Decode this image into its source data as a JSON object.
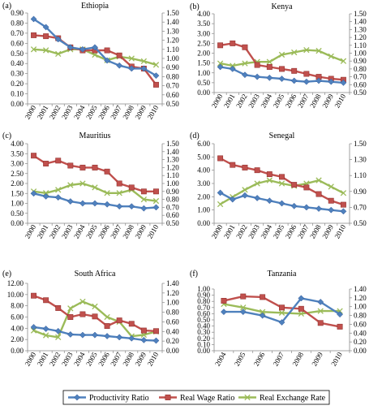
{
  "legend": [
    {
      "name": "Productivity Ratio",
      "color": "#4f81bd",
      "marker": "diamond"
    },
    {
      "name": "Real Wage Ratio",
      "color": "#c0504d",
      "marker": "square"
    },
    {
      "name": "Real Exchange Rate",
      "color": "#9bbb59",
      "marker": "x"
    }
  ],
  "chart_data": [
    {
      "type": "line",
      "panel": "(a)",
      "title": "Ethiopia",
      "x": [
        "2000",
        "2001",
        "2002",
        "2003",
        "2004",
        "2005",
        "2006",
        "2007",
        "2008",
        "2009",
        "2010"
      ],
      "y_left": {
        "ticks": [
          "0.00",
          "0.10",
          "0.20",
          "0.30",
          "0.40",
          "0.50",
          "0.60",
          "0.70",
          "0.80",
          "0.90"
        ],
        "min": 0,
        "max": 0.9
      },
      "y_right": {
        "ticks": [
          "0.50",
          "0.60",
          "0.70",
          "0.80",
          "0.90",
          "1.00",
          "1.10",
          "1.20",
          "1.30",
          "1.40",
          "1.50"
        ],
        "min": 0.5,
        "max": 1.5
      },
      "series": [
        {
          "name": "Productivity Ratio",
          "axis": "left",
          "values": [
            0.84,
            0.76,
            0.64,
            0.56,
            0.54,
            0.56,
            0.43,
            0.38,
            0.35,
            0.35,
            0.28
          ]
        },
        {
          "name": "Real Wage Ratio",
          "axis": "left",
          "values": [
            0.68,
            0.67,
            0.65,
            0.56,
            0.53,
            0.53,
            0.53,
            0.48,
            0.37,
            0.35,
            0.19
          ]
        },
        {
          "name": "Real Exchange Rate",
          "axis": "right",
          "values": [
            1.1,
            1.09,
            1.05,
            1.1,
            1.1,
            1.04,
            0.98,
            1.02,
            1.0,
            0.97,
            0.93
          ]
        }
      ]
    },
    {
      "type": "line",
      "panel": "(b)",
      "title": "Kenya",
      "x": [
        "2000",
        "2001",
        "2002",
        "2003",
        "2004",
        "2005",
        "2006",
        "2007",
        "2008",
        "2009",
        "2010"
      ],
      "y_left": {
        "ticks": [
          "0.00",
          "0.50",
          "1.00",
          "1.50",
          "2.00",
          "2.50",
          "3.00",
          "3.50",
          "4.00"
        ],
        "min": 0,
        "max": 4
      },
      "y_right": {
        "ticks": [
          "0.50",
          "0.60",
          "0.70",
          "0.80",
          "0.90",
          "1.00",
          "1.10",
          "1.20",
          "1.30",
          "1.40",
          "1.50"
        ],
        "min": 0.5,
        "max": 1.5
      },
      "series": [
        {
          "name": "Productivity Ratio",
          "axis": "left",
          "values": [
            1.3,
            1.2,
            0.9,
            0.8,
            0.75,
            0.7,
            0.6,
            0.55,
            0.6,
            0.55,
            0.5
          ]
        },
        {
          "name": "Real Wage Ratio",
          "axis": "left",
          "values": [
            2.4,
            2.5,
            2.3,
            1.4,
            1.3,
            1.2,
            1.1,
            0.95,
            0.8,
            0.7,
            0.65
          ]
        },
        {
          "name": "Real Exchange Rate",
          "axis": "right",
          "values": [
            0.87,
            0.84,
            0.87,
            0.89,
            0.89,
            0.98,
            1.01,
            1.04,
            1.03,
            0.96,
            0.9
          ]
        }
      ]
    },
    {
      "type": "line",
      "panel": "(c)",
      "title": "Mauritius",
      "x": [
        "2000",
        "2001",
        "2002",
        "2003",
        "2004",
        "2005",
        "2006",
        "2007",
        "2008",
        "2009",
        "2010"
      ],
      "y_left": {
        "ticks": [
          "0.00",
          "0.50",
          "1.00",
          "1.50",
          "2.00",
          "2.50",
          "3.00",
          "3.50",
          "4.00"
        ],
        "min": 0,
        "max": 4
      },
      "y_right": {
        "ticks": [
          "0.50",
          "0.60",
          "0.70",
          "0.80",
          "0.90",
          "1.00",
          "1.10",
          "1.20",
          "1.30",
          "1.40",
          "1.50"
        ],
        "min": 0.5,
        "max": 1.5
      },
      "series": [
        {
          "name": "Productivity Ratio",
          "axis": "left",
          "values": [
            1.5,
            1.35,
            1.3,
            1.1,
            1.0,
            1.0,
            0.95,
            0.85,
            0.85,
            0.75,
            0.8
          ]
        },
        {
          "name": "Real Wage Ratio",
          "axis": "left",
          "values": [
            3.4,
            3.0,
            3.15,
            2.9,
            2.8,
            2.8,
            2.6,
            2.0,
            1.8,
            1.6,
            1.6
          ]
        },
        {
          "name": "Real Exchange Rate",
          "axis": "right",
          "values": [
            0.9,
            0.88,
            0.92,
            0.98,
            1.0,
            0.95,
            0.88,
            0.88,
            0.92,
            0.8,
            0.78
          ]
        }
      ]
    },
    {
      "type": "line",
      "panel": "(d)",
      "title": "Senegal",
      "x": [
        "2000",
        "2001",
        "2002",
        "2003",
        "2004",
        "2005",
        "2006",
        "2007",
        "2008",
        "2009",
        "2010"
      ],
      "y_left": {
        "ticks": [
          "0.00",
          "1.00",
          "2.00",
          "3.00",
          "4.00",
          "5.00",
          "6.00"
        ],
        "min": 0,
        "max": 6
      },
      "y_right": {
        "ticks": [
          "0.50",
          "0.70",
          "0.90",
          "1.10",
          "1.30",
          "1.50"
        ],
        "min": 0.5,
        "max": 1.5
      },
      "series": [
        {
          "name": "Productivity Ratio",
          "axis": "left",
          "values": [
            2.3,
            1.8,
            2.1,
            1.9,
            1.7,
            1.5,
            1.3,
            1.2,
            1.1,
            1.0,
            0.9
          ]
        },
        {
          "name": "Real Wage Ratio",
          "axis": "left",
          "values": [
            4.9,
            4.4,
            4.2,
            4.0,
            3.7,
            3.5,
            2.9,
            2.7,
            2.2,
            1.7,
            1.4
          ]
        },
        {
          "name": "Real Exchange Rate",
          "axis": "right",
          "values": [
            0.74,
            0.83,
            0.92,
            1.0,
            1.04,
            1.0,
            0.97,
            1.0,
            1.04,
            0.96,
            0.88
          ]
        }
      ]
    },
    {
      "type": "line",
      "panel": "(e)",
      "title": "South Africa",
      "x": [
        "2000",
        "2001",
        "2002",
        "2003",
        "2004",
        "2005",
        "2006",
        "2007",
        "2008",
        "2009",
        "2010"
      ],
      "y_left": {
        "ticks": [
          "0.00",
          "2.00",
          "4.00",
          "6.00",
          "8.00",
          "10.00",
          "12.00"
        ],
        "min": 0,
        "max": 12
      },
      "y_right": {
        "ticks": [
          "0.00",
          "0.20",
          "0.40",
          "0.60",
          "0.80",
          "1.00",
          "1.20",
          "1.40"
        ],
        "min": 0,
        "max": 1.4
      },
      "series": [
        {
          "name": "Productivity Ratio",
          "axis": "left",
          "values": [
            4.2,
            3.9,
            3.5,
            2.9,
            2.8,
            2.8,
            2.6,
            2.4,
            2.2,
            1.9,
            1.8
          ]
        },
        {
          "name": "Real Wage Ratio",
          "axis": "left",
          "values": [
            9.8,
            9.0,
            7.6,
            6.0,
            6.5,
            6.1,
            4.4,
            5.4,
            4.8,
            3.6,
            3.5
          ]
        },
        {
          "name": "Real Exchange Rate",
          "axis": "right",
          "values": [
            0.42,
            0.32,
            0.28,
            0.88,
            1.02,
            0.92,
            0.7,
            0.6,
            0.3,
            0.33,
            0.4
          ]
        }
      ]
    },
    {
      "type": "line",
      "panel": "(f)",
      "title": "Tanzania",
      "x": [
        "2004",
        "2005",
        "2006",
        "2007",
        "2008",
        "2009",
        "2010"
      ],
      "y_left": {
        "ticks": [
          "0.00",
          "0.10",
          "0.20",
          "0.30",
          "0.40",
          "0.50",
          "0.60",
          "0.70",
          "0.80",
          "0.90",
          "1.00"
        ],
        "min": 0,
        "max": 1
      },
      "y_right": {
        "ticks": [
          "0.00",
          "0.20",
          "0.40",
          "0.60",
          "0.80",
          "1.00",
          "1.20",
          "1.40"
        ],
        "min": 0,
        "max": 1.4
      },
      "series": [
        {
          "name": "Productivity Ratio",
          "axis": "left",
          "values": [
            0.63,
            0.63,
            0.57,
            0.46,
            0.85,
            0.79,
            0.59
          ]
        },
        {
          "name": "Real Wage Ratio",
          "axis": "left",
          "values": [
            0.81,
            0.88,
            0.87,
            0.7,
            0.68,
            0.45,
            0.39
          ]
        },
        {
          "name": "Real Exchange Rate",
          "axis": "right",
          "values": [
            1.06,
            0.98,
            0.88,
            0.86,
            0.84,
            0.9,
            0.9
          ]
        }
      ]
    }
  ]
}
